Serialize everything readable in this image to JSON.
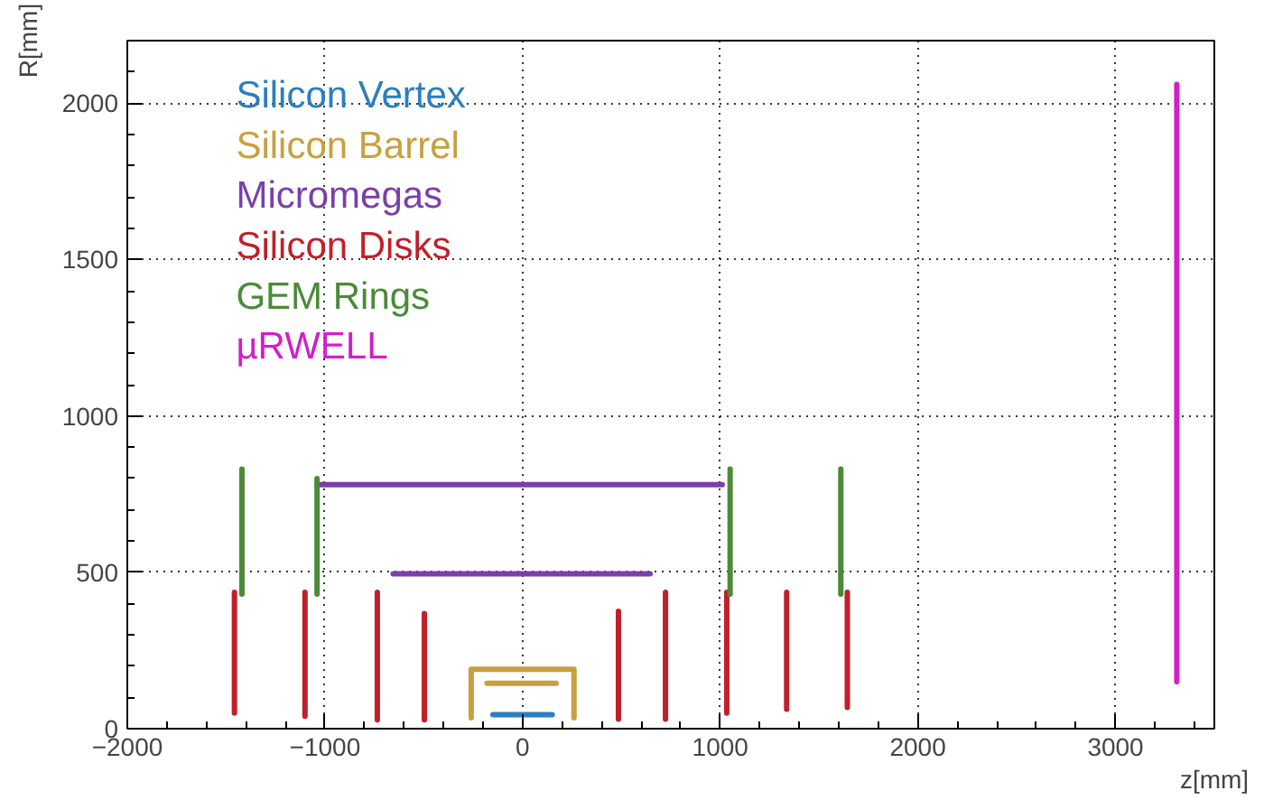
{
  "chart_data": {
    "type": "line",
    "xlabel": "z[mm]",
    "ylabel": "R[mm]",
    "xlim": [
      -2000,
      3500
    ],
    "xticks": [
      -2000,
      -1000,
      0,
      1000,
      2000,
      3000
    ],
    "ylim": [
      0,
      2200
    ],
    "yticks": [
      0,
      500,
      1000,
      1500,
      2000
    ],
    "grid": true,
    "legend": "top left",
    "marker": "none",
    "line_style": "solid",
    "series": [
      {
        "name": "Silicon Vertex",
        "color": "#2a7fbf",
        "x": [
          -150,
          150
        ],
        "values": [
          45,
          45
        ]
      },
      {
        "name": "Silicon Barrel",
        "color": "#c8a040",
        "x": [
          -180,
          170,
          null,
          -260,
          -260,
          260,
          260
        ],
        "values": [
          145,
          145,
          null,
          35,
          190,
          190,
          35
        ]
      },
      {
        "name": "Micromegas",
        "color": "#7b3fa8",
        "x": [
          -1030,
          1010,
          null,
          -655,
          645
        ],
        "values": [
          780,
          780,
          null,
          495,
          495
        ]
      },
      {
        "name": "Silicon Disks",
        "color": "#c0202a",
        "x": [
          -1458,
          -1458,
          null,
          -1101,
          -1101,
          null,
          -735,
          -735,
          null,
          -497,
          -497,
          null,
          485,
          485,
          null,
          723,
          723,
          null,
          1033,
          1033,
          null,
          1336,
          1336,
          null,
          1643,
          1643
        ],
        "values": [
          50,
          436,
          null,
          40,
          436,
          null,
          28,
          436,
          null,
          28,
          368,
          null,
          30,
          375,
          null,
          30,
          436,
          null,
          50,
          436,
          null,
          62,
          436,
          null,
          68,
          436
        ]
      },
      {
        "name": "GEM Rings",
        "color": "#4a8a3a",
        "x": [
          -1420,
          -1420,
          null,
          -1040,
          -1040,
          null,
          1050,
          1050,
          null,
          1610,
          1610
        ],
        "values": [
          430,
          830,
          null,
          430,
          800,
          null,
          430,
          830,
          null,
          430,
          830
        ]
      },
      {
        "name": "µRWELL",
        "color": "#d020c8",
        "x": [
          3310,
          3310
        ],
        "values": [
          150,
          2060
        ]
      }
    ]
  }
}
